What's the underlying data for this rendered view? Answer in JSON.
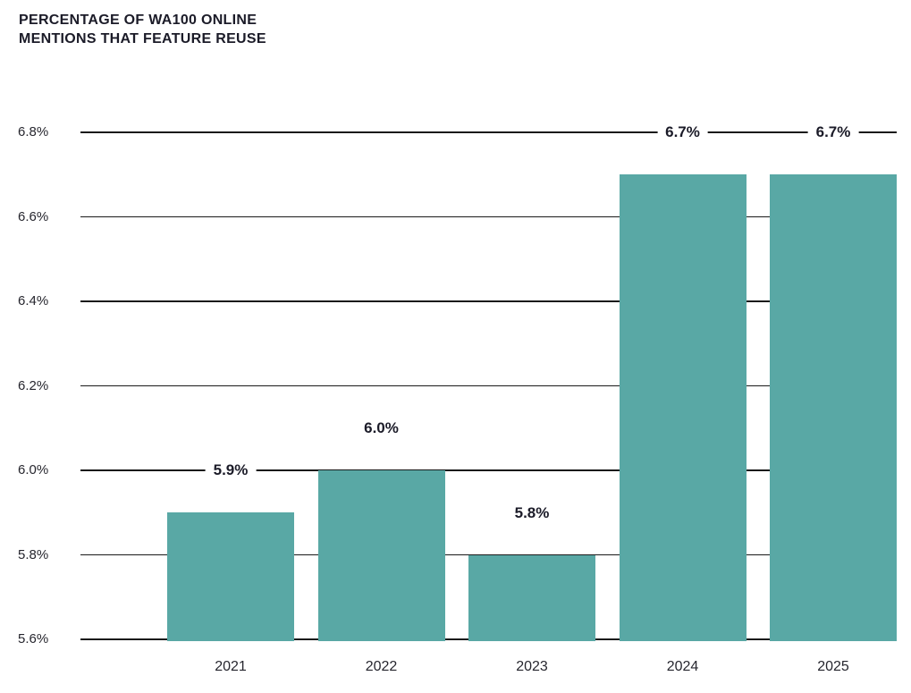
{
  "title": {
    "lines": [
      "PERCENTAGE OF WA100 ONLINE",
      "MENTIONS THAT FEATURE REUSE"
    ]
  },
  "chart_data": {
    "type": "bar",
    "title": "PERCENTAGE OF WA100 ONLINE MENTIONS THAT FEATURE REUSE",
    "categories": [
      "2021",
      "2022",
      "2023",
      "2024",
      "2025"
    ],
    "values": [
      5.9,
      6.0,
      5.8,
      6.7,
      6.7
    ],
    "data_labels": [
      "5.9%",
      "6.0%",
      "5.8%",
      "6.7%",
      "6.7%"
    ],
    "yticks": [
      5.6,
      5.8,
      6.0,
      6.2,
      6.4,
      6.6,
      6.8
    ],
    "ytick_labels": [
      "5.6%",
      "5.8%",
      "6.0%",
      "6.2%",
      "6.4%",
      "6.6%",
      "6.8%"
    ],
    "ylim": [
      5.6,
      6.8
    ],
    "unit": "%",
    "xlabel": "",
    "ylabel": "",
    "grid": true,
    "legend": false,
    "colors": {
      "bar": "#59a8a5",
      "gridline": "#1a1a1a",
      "title_text": "#1b1b28",
      "axis_text": "#26262e",
      "background": "#ffffff"
    }
  }
}
